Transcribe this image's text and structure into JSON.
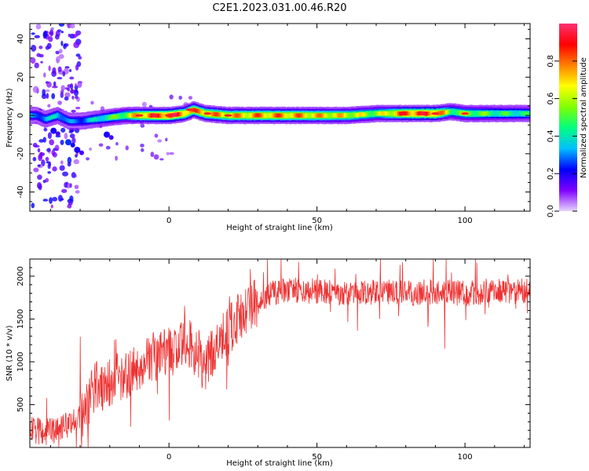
{
  "figure_title": "C2E1.2023.031.00.46.R20",
  "chart_data": [
    {
      "type": "heatmap",
      "title": "",
      "xlabel": "Height of straight line (km)",
      "ylabel": "Frequency (Hz)",
      "xlim": [
        -47,
        122
      ],
      "ylim": [
        -50,
        48
      ],
      "xticks": [
        0,
        50,
        100
      ],
      "yticks": [
        -40,
        -20,
        0,
        20,
        40
      ],
      "colorbar": {
        "label": "Normalized spectral amplitude",
        "range": [
          0.0,
          1.0
        ],
        "ticks": [
          0.0,
          0.2,
          0.4,
          0.6,
          0.8
        ],
        "colormap": "rainbow",
        "colors": [
          "#e8d5ff",
          "#7f00ff",
          "#0000ff",
          "#00bfff",
          "#00ff80",
          "#80ff00",
          "#ffff00",
          "#ff8000",
          "#ff0000",
          "#ff3070"
        ]
      },
      "ridge": {
        "note": "dominant frequency ridge (Hz) vs height (km)",
        "x": [
          -45,
          -42,
          -38,
          -34,
          -30,
          -25,
          -20,
          -15,
          -10,
          -5,
          0,
          5,
          8,
          12,
          20,
          30,
          40,
          50,
          60,
          70,
          80,
          90,
          95,
          100,
          110,
          122
        ],
        "y": [
          0,
          -2,
          0,
          -3,
          -3,
          -2,
          -1,
          0,
          0,
          0,
          0,
          1,
          3,
          1,
          0,
          0,
          0,
          0,
          0,
          1,
          1,
          1,
          2,
          1,
          1,
          1
        ],
        "peak_amplitude": [
          0.3,
          0.35,
          0.4,
          0.3,
          0.3,
          0.4,
          0.5,
          0.6,
          0.8,
          0.9,
          0.95,
          0.85,
          0.8,
          0.8,
          0.75,
          0.8,
          0.8,
          0.75,
          0.7,
          0.6,
          0.9,
          0.9,
          0.55,
          0.6,
          0.5,
          0.45
        ]
      },
      "side_blobs": {
        "note": "secondary energy below the ridge",
        "points": [
          {
            "x": -39,
            "y": -8,
            "amplitude": 0.2
          },
          {
            "x": -34,
            "y": -14,
            "amplitude": 0.25
          },
          {
            "x": -31,
            "y": -18,
            "amplitude": 0.2
          },
          {
            "x": -21,
            "y": -10,
            "amplitude": 0.2
          }
        ]
      },
      "scattered_noise_x_range": [
        -46,
        -30
      ]
    },
    {
      "type": "line",
      "title": "",
      "xlabel": "Height of straight line (km)",
      "ylabel": "SNR (10 * v/v)",
      "xlim": [
        -47,
        122
      ],
      "ylim": [
        0,
        2200
      ],
      "xticks": [
        0,
        50,
        100
      ],
      "yticks": [
        500,
        1000,
        1500,
        2000
      ],
      "line_color": "#ee3333",
      "series": [
        {
          "name": "",
          "note": "noisy trace; values are the running baseline level, spikes reach the peaks listed",
          "x": [
            -47,
            -40,
            -35,
            -30,
            -25,
            -20,
            -15,
            -10,
            -5,
            0,
            5,
            10,
            12,
            15,
            20,
            25,
            30,
            35,
            40,
            45,
            50,
            60,
            70,
            80,
            90,
            100,
            110,
            122
          ],
          "y": [
            200,
            180,
            250,
            350,
            700,
            750,
            850,
            950,
            1050,
            1100,
            1250,
            1100,
            900,
            1150,
            1350,
            1600,
            1700,
            1800,
            1850,
            1820,
            1830,
            1800,
            1820,
            1800,
            1820,
            1800,
            1830,
            1820
          ],
          "peaks": [
            820,
            700,
            1500,
            1550,
            1600,
            1550,
            1750,
            1700,
            1900,
            2000,
            2150,
            2150,
            2150,
            2200,
            2200,
            2150
          ]
        }
      ]
    }
  ]
}
